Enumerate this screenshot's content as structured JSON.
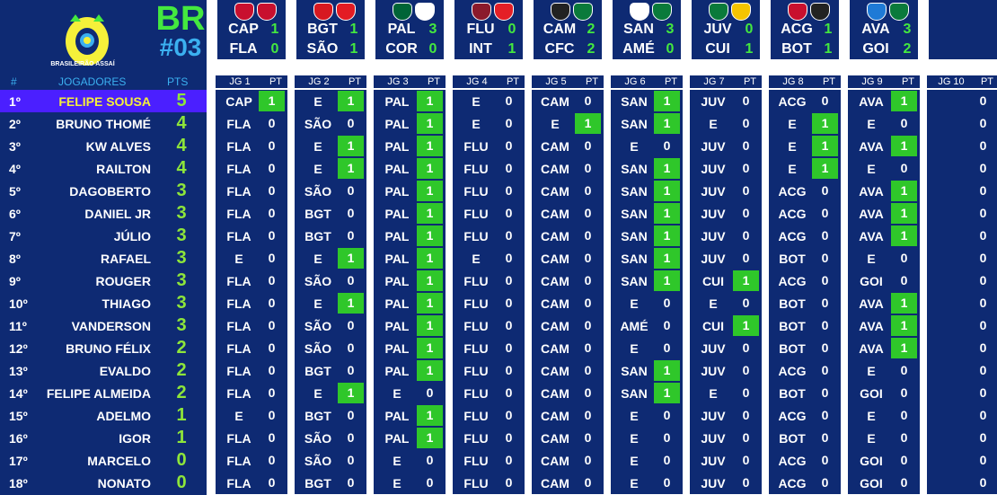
{
  "header": {
    "round_code": "BR",
    "round_number": "#03",
    "logo_label": "BRASILEIRÃO ASSAÍ",
    "logo_icon": "brasileirao-trophy-logo"
  },
  "colors": {
    "background": "#0e2a73",
    "accent_green": "#44e83f",
    "accent_blue": "#3bb0f0",
    "leader_row": "#4b1fff",
    "leader_name": "#f5f03a",
    "hit_cell": "#2fc72a"
  },
  "columns": {
    "position": "#",
    "players": "JOGADORES",
    "points": "PTS"
  },
  "matches": [
    {
      "home": "CAP",
      "home_score": "1",
      "away": "FLA",
      "away_score": "0",
      "home_color": "#c8102e",
      "away_color": "#c8102e"
    },
    {
      "home": "BGT",
      "home_score": "1",
      "away": "SÃO",
      "away_score": "1",
      "home_color": "#d71920",
      "away_color": "#e31b23"
    },
    {
      "home": "PAL",
      "home_score": "3",
      "away": "COR",
      "away_score": "0",
      "home_color": "#006437",
      "away_color": "#ffffff"
    },
    {
      "home": "FLU",
      "home_score": "0",
      "away": "INT",
      "away_score": "1",
      "home_color": "#8b1a2b",
      "away_color": "#e41f26"
    },
    {
      "home": "CAM",
      "home_score": "2",
      "away": "CFC",
      "away_score": "2",
      "home_color": "#222222",
      "away_color": "#0a7a3b"
    },
    {
      "home": "SAN",
      "home_score": "3",
      "away": "AMÉ",
      "away_score": "0",
      "home_color": "#ffffff",
      "away_color": "#0a7a3b"
    },
    {
      "home": "JUV",
      "home_score": "0",
      "away": "CUI",
      "away_score": "1",
      "home_color": "#0a7a3b",
      "away_color": "#f5c400"
    },
    {
      "home": "ACG",
      "home_score": "1",
      "away": "BOT",
      "away_score": "1",
      "home_color": "#c8102e",
      "away_color": "#222222"
    },
    {
      "home": "AVA",
      "home_score": "3",
      "away": "GOI",
      "away_score": "2",
      "home_color": "#1e7ad6",
      "away_color": "#0a7a3b"
    },
    {
      "home": "",
      "home_score": "",
      "away": "",
      "away_score": "",
      "home_color": "",
      "away_color": ""
    }
  ],
  "round_headers": [
    {
      "jg": "JG 1",
      "pt": "PT"
    },
    {
      "jg": "JG 2",
      "pt": "PT"
    },
    {
      "jg": "JG 3",
      "pt": "PT"
    },
    {
      "jg": "JG 4",
      "pt": "PT"
    },
    {
      "jg": "JG 5",
      "pt": "PT"
    },
    {
      "jg": "JG 6",
      "pt": "PT"
    },
    {
      "jg": "JG 7",
      "pt": "PT"
    },
    {
      "jg": "JG 8",
      "pt": "PT"
    },
    {
      "jg": "JG 9",
      "pt": "PT"
    },
    {
      "jg": "JG 10",
      "pt": "PT"
    }
  ],
  "players": [
    {
      "pos": "1º",
      "name": "FELIPE SOUSA",
      "pts": "5",
      "picks": [
        "CAP",
        "E",
        "PAL",
        "E",
        "CAM",
        "SAN",
        "JUV",
        "ACG",
        "AVA",
        ""
      ],
      "points": [
        "1",
        "1",
        "1",
        "0",
        "0",
        "1",
        "0",
        "0",
        "1",
        "0"
      ]
    },
    {
      "pos": "2º",
      "name": "BRUNO THOMÉ",
      "pts": "4",
      "picks": [
        "FLA",
        "SÃO",
        "PAL",
        "E",
        "E",
        "SAN",
        "E",
        "E",
        "E",
        ""
      ],
      "points": [
        "0",
        "0",
        "1",
        "0",
        "1",
        "1",
        "0",
        "1",
        "0",
        "0"
      ]
    },
    {
      "pos": "3º",
      "name": "KW ALVES",
      "pts": "4",
      "picks": [
        "FLA",
        "E",
        "PAL",
        "FLU",
        "CAM",
        "E",
        "JUV",
        "E",
        "AVA",
        ""
      ],
      "points": [
        "0",
        "1",
        "1",
        "0",
        "0",
        "0",
        "0",
        "1",
        "1",
        "0"
      ]
    },
    {
      "pos": "4º",
      "name": "RAILTON",
      "pts": "4",
      "picks": [
        "FLA",
        "E",
        "PAL",
        "FLU",
        "CAM",
        "SAN",
        "JUV",
        "E",
        "E",
        ""
      ],
      "points": [
        "0",
        "1",
        "1",
        "0",
        "0",
        "1",
        "0",
        "1",
        "0",
        "0"
      ]
    },
    {
      "pos": "5º",
      "name": "DAGOBERTO",
      "pts": "3",
      "picks": [
        "FLA",
        "SÃO",
        "PAL",
        "FLU",
        "CAM",
        "SAN",
        "JUV",
        "ACG",
        "AVA",
        ""
      ],
      "points": [
        "0",
        "0",
        "1",
        "0",
        "0",
        "1",
        "0",
        "0",
        "1",
        "0"
      ]
    },
    {
      "pos": "6º",
      "name": "DANIEL JR",
      "pts": "3",
      "picks": [
        "FLA",
        "BGT",
        "PAL",
        "FLU",
        "CAM",
        "SAN",
        "JUV",
        "ACG",
        "AVA",
        ""
      ],
      "points": [
        "0",
        "0",
        "1",
        "0",
        "0",
        "1",
        "0",
        "0",
        "1",
        "0"
      ]
    },
    {
      "pos": "7º",
      "name": "JÚLIO",
      "pts": "3",
      "picks": [
        "FLA",
        "BGT",
        "PAL",
        "FLU",
        "CAM",
        "SAN",
        "JUV",
        "ACG",
        "AVA",
        ""
      ],
      "points": [
        "0",
        "0",
        "1",
        "0",
        "0",
        "1",
        "0",
        "0",
        "1",
        "0"
      ]
    },
    {
      "pos": "8º",
      "name": "RAFAEL",
      "pts": "3",
      "picks": [
        "E",
        "E",
        "PAL",
        "E",
        "CAM",
        "SAN",
        "JUV",
        "BOT",
        "E",
        ""
      ],
      "points": [
        "0",
        "1",
        "1",
        "0",
        "0",
        "1",
        "0",
        "0",
        "0",
        "0"
      ]
    },
    {
      "pos": "9º",
      "name": "ROUGER",
      "pts": "3",
      "picks": [
        "FLA",
        "SÃO",
        "PAL",
        "FLU",
        "CAM",
        "SAN",
        "CUI",
        "ACG",
        "GOI",
        ""
      ],
      "points": [
        "0",
        "0",
        "1",
        "0",
        "0",
        "1",
        "1",
        "0",
        "0",
        "0"
      ]
    },
    {
      "pos": "10º",
      "name": "THIAGO",
      "pts": "3",
      "picks": [
        "FLA",
        "E",
        "PAL",
        "FLU",
        "CAM",
        "E",
        "E",
        "BOT",
        "AVA",
        ""
      ],
      "points": [
        "0",
        "1",
        "1",
        "0",
        "0",
        "0",
        "0",
        "0",
        "1",
        "0"
      ]
    },
    {
      "pos": "11º",
      "name": "VANDERSON",
      "pts": "3",
      "picks": [
        "FLA",
        "SÃO",
        "PAL",
        "FLU",
        "CAM",
        "AMÉ",
        "CUI",
        "BOT",
        "AVA",
        ""
      ],
      "points": [
        "0",
        "0",
        "1",
        "0",
        "0",
        "0",
        "1",
        "0",
        "1",
        "0"
      ]
    },
    {
      "pos": "12º",
      "name": "BRUNO FÉLIX",
      "pts": "2",
      "picks": [
        "FLA",
        "SÃO",
        "PAL",
        "FLU",
        "CAM",
        "E",
        "JUV",
        "BOT",
        "AVA",
        ""
      ],
      "points": [
        "0",
        "0",
        "1",
        "0",
        "0",
        "0",
        "0",
        "0",
        "1",
        "0"
      ]
    },
    {
      "pos": "13º",
      "name": "EVALDO",
      "pts": "2",
      "picks": [
        "FLA",
        "BGT",
        "PAL",
        "FLU",
        "CAM",
        "SAN",
        "JUV",
        "ACG",
        "E",
        ""
      ],
      "points": [
        "0",
        "0",
        "1",
        "0",
        "0",
        "1",
        "0",
        "0",
        "0",
        "0"
      ]
    },
    {
      "pos": "14º",
      "name": "FELIPE ALMEIDA",
      "pts": "2",
      "picks": [
        "FLA",
        "E",
        "E",
        "FLU",
        "CAM",
        "SAN",
        "E",
        "BOT",
        "GOI",
        ""
      ],
      "points": [
        "0",
        "1",
        "0",
        "0",
        "0",
        "1",
        "0",
        "0",
        "0",
        "0"
      ]
    },
    {
      "pos": "15º",
      "name": "ADELMO",
      "pts": "1",
      "picks": [
        "E",
        "BGT",
        "PAL",
        "FLU",
        "CAM",
        "E",
        "JUV",
        "ACG",
        "E",
        ""
      ],
      "points": [
        "0",
        "0",
        "1",
        "0",
        "0",
        "0",
        "0",
        "0",
        "0",
        "0"
      ]
    },
    {
      "pos": "16º",
      "name": "IGOR",
      "pts": "1",
      "picks": [
        "FLA",
        "SÃO",
        "PAL",
        "FLU",
        "CAM",
        "E",
        "JUV",
        "BOT",
        "E",
        ""
      ],
      "points": [
        "0",
        "0",
        "1",
        "0",
        "0",
        "0",
        "0",
        "0",
        "0",
        "0"
      ]
    },
    {
      "pos": "17º",
      "name": "MARCELO",
      "pts": "0",
      "picks": [
        "FLA",
        "SÃO",
        "E",
        "FLU",
        "CAM",
        "E",
        "JUV",
        "ACG",
        "GOI",
        ""
      ],
      "points": [
        "0",
        "0",
        "0",
        "0",
        "0",
        "0",
        "0",
        "0",
        "0",
        "0"
      ]
    },
    {
      "pos": "18º",
      "name": "NONATO",
      "pts": "0",
      "picks": [
        "FLA",
        "BGT",
        "E",
        "FLU",
        "CAM",
        "E",
        "JUV",
        "ACG",
        "GOI",
        ""
      ],
      "points": [
        "0",
        "0",
        "0",
        "0",
        "0",
        "0",
        "0",
        "0",
        "0",
        "0"
      ]
    }
  ]
}
